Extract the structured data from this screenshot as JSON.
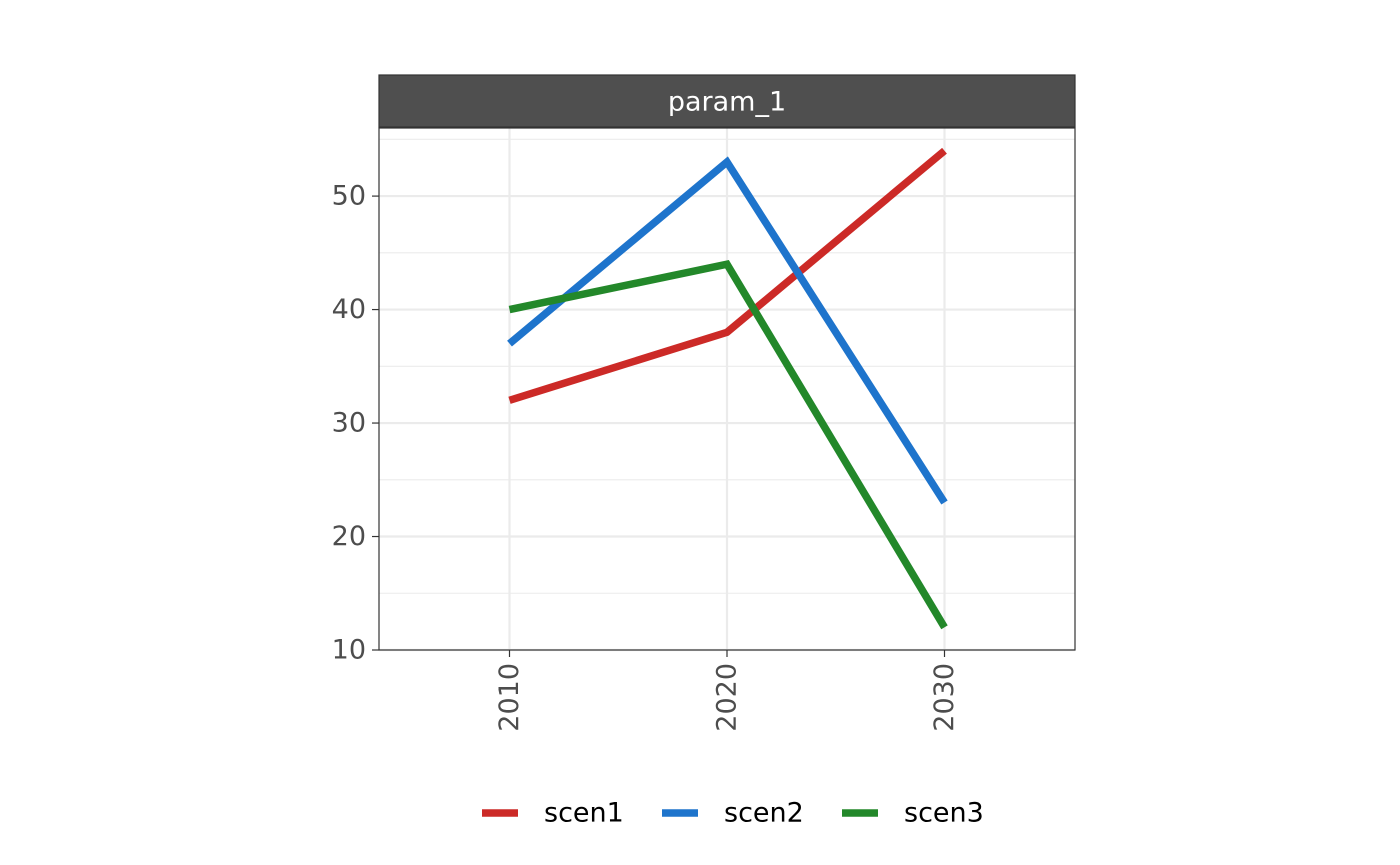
{
  "chart_data": {
    "type": "line",
    "title": "",
    "xlabel": "",
    "ylabel": "",
    "facet_label": "param_1",
    "x": [
      2010,
      2020,
      2030
    ],
    "x_tick_labels": [
      "2010",
      "2020",
      "2030"
    ],
    "xlim": [
      2004,
      2036
    ],
    "y_ticks": [
      10,
      20,
      30,
      40,
      50
    ],
    "y_tick_labels": [
      "10",
      "20",
      "30",
      "40",
      "50"
    ],
    "ylim": [
      10,
      56
    ],
    "grid": true,
    "legend_position": "bottom",
    "series": [
      {
        "name": "scen1",
        "color": "#cc2a27",
        "values": [
          32,
          38,
          54
        ]
      },
      {
        "name": "scen2",
        "color": "#1e74cc",
        "values": [
          37,
          53,
          23
        ]
      },
      {
        "name": "scen3",
        "color": "#23882a",
        "values": [
          40,
          44,
          12
        ]
      }
    ]
  }
}
